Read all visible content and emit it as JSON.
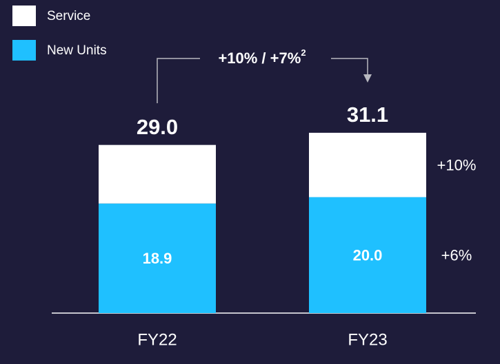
{
  "chart_data": {
    "type": "stacked_bar",
    "categories": [
      "FY22",
      "FY23"
    ],
    "series": [
      {
        "name": "New Units",
        "color": "#1fc0ff",
        "values": [
          18.9,
          20.0
        ],
        "value_labels": [
          "18.9",
          "20.0"
        ],
        "growth": "+6%"
      },
      {
        "name": "Service",
        "color": "#ffffff",
        "values": [
          10.1,
          11.1
        ],
        "value_labels": [
          "10.1",
          "11.1"
        ],
        "growth": "+10%"
      }
    ],
    "totals": [
      29.0,
      31.1
    ],
    "total_labels": [
      "29.0",
      "31.1"
    ],
    "annotation": "+10% / +7%",
    "annotation_sup": "2",
    "ylim": [
      0,
      54
    ]
  }
}
